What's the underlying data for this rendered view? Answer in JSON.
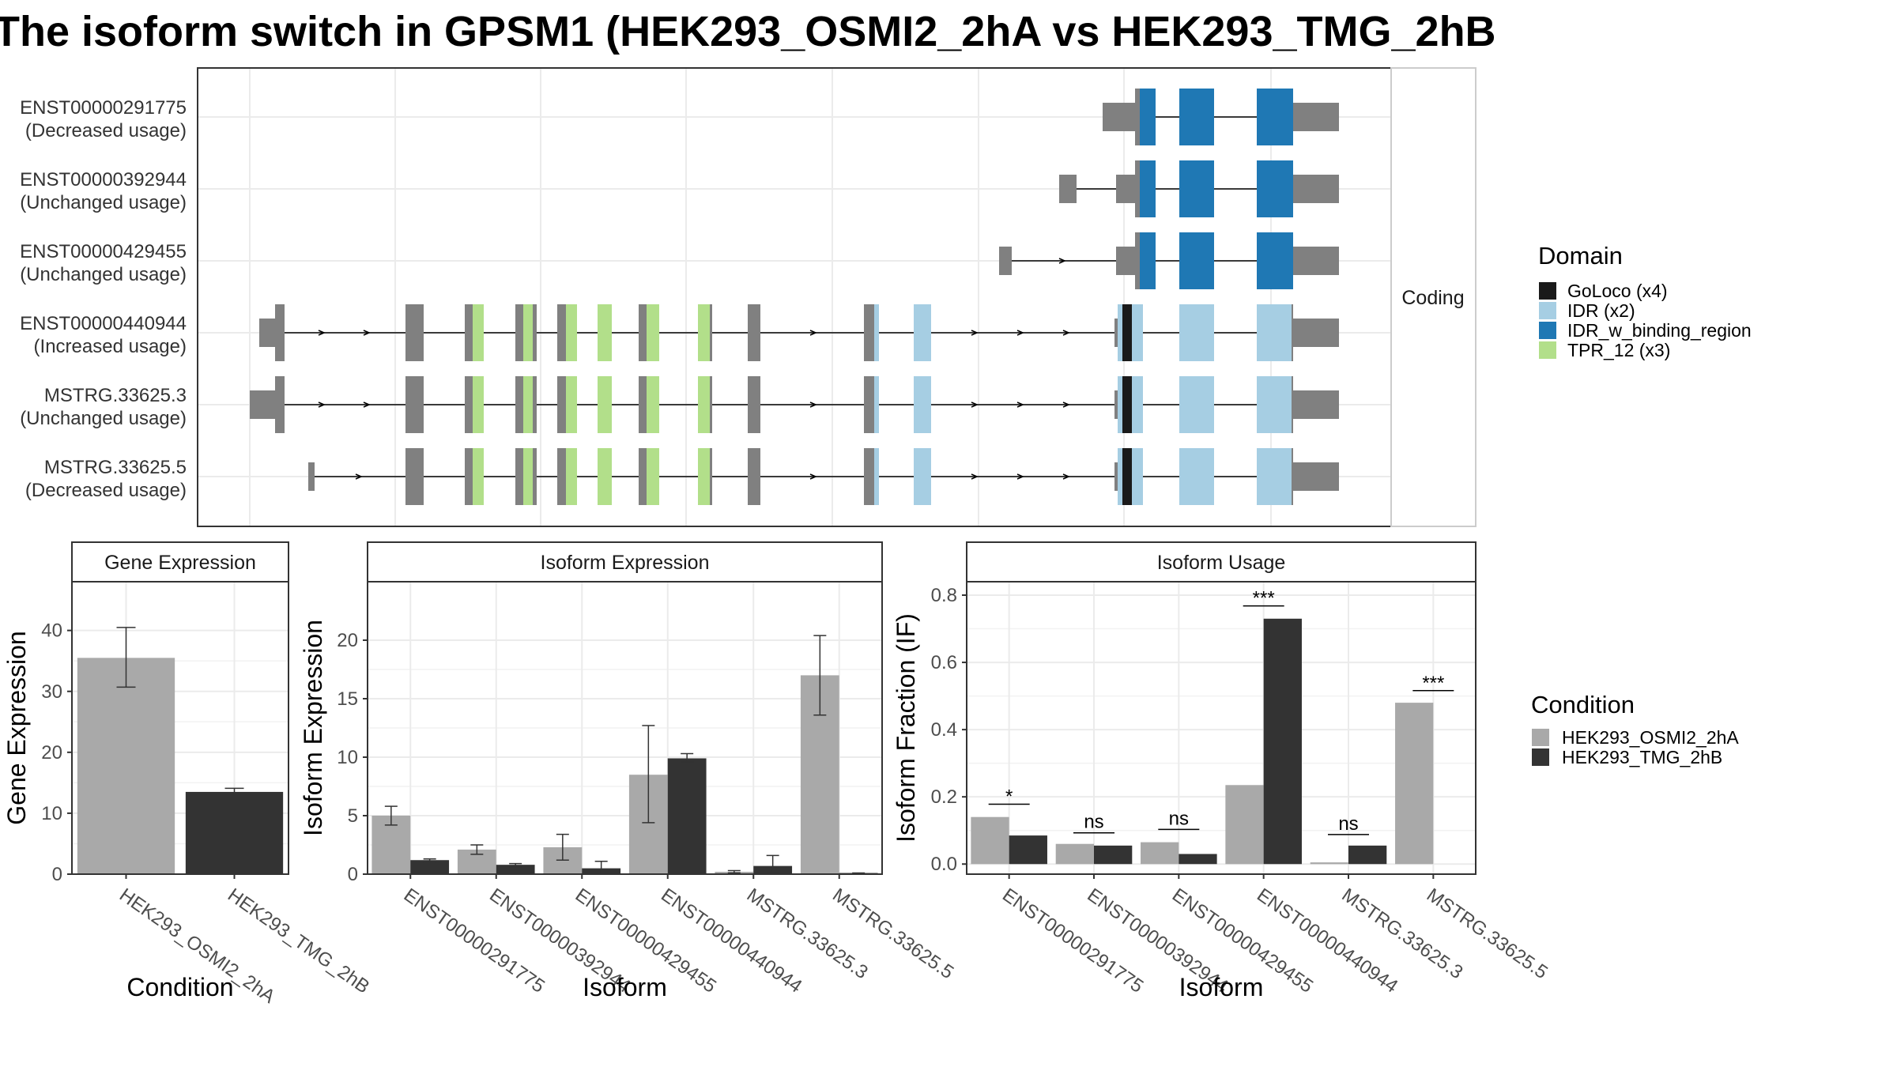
{
  "title": "The isoform switch in GPSM1 (HEK293_OSMI2_2hA vs HEK293_TMG_2hB",
  "colors": {
    "cond_a": "#a9a9a9",
    "cond_b": "#333333",
    "exon": "#808080",
    "goloco": "#1a1a1a",
    "idr": "#a6cee3",
    "idr_binding": "#1f78b4",
    "tpr": "#b2df8a"
  },
  "chart_data": [
    {
      "type": "gene-structure",
      "facet_label": "Coding",
      "transcripts": [
        {
          "id": "ENST00000291775",
          "usage": "(Decreased usage)"
        },
        {
          "id": "ENST00000392944",
          "usage": "(Unchanged usage)"
        },
        {
          "id": "ENST00000429455",
          "usage": "(Unchanged usage)"
        },
        {
          "id": "ENST00000440944",
          "usage": "(Increased usage)"
        },
        {
          "id": "MSTRG.33625.3",
          "usage": "(Unchanged usage)"
        },
        {
          "id": "MSTRG.33625.5",
          "usage": "(Decreased usage)"
        }
      ],
      "legend": {
        "title": "Domain",
        "items": [
          {
            "label": "GoLoco (x4)",
            "color": "#1a1a1a"
          },
          {
            "label": "IDR (x2)",
            "color": "#a6cee3"
          },
          {
            "label": "IDR_w_binding_region",
            "color": "#1f78b4"
          },
          {
            "label": "TPR_12 (x3)",
            "color": "#b2df8a"
          }
        ]
      }
    },
    {
      "type": "bar",
      "strip": "Gene Expression",
      "xlabel": "Condition",
      "ylabel": "Gene Expression",
      "ylim": [
        0,
        48
      ],
      "yticks": [
        0,
        10,
        20,
        30,
        40
      ],
      "categories": [
        "HEK293_OSMI2_2hA",
        "HEK293_TMG_2hB"
      ],
      "values": [
        35.5,
        13.5
      ],
      "errors": [
        [
          30.7,
          40.5
        ],
        [
          13.0,
          14.1
        ]
      ]
    },
    {
      "type": "bar",
      "strip": "Isoform Expression",
      "xlabel": "Isoform",
      "ylabel": "Isoform Expression",
      "ylim": [
        0,
        25
      ],
      "yticks": [
        0,
        5,
        10,
        15,
        20
      ],
      "categories": [
        "ENST00000291775",
        "ENST00000392944",
        "ENST00000429455",
        "ENST00000440944",
        "MSTRG.33625.3",
        "MSTRG.33625.5"
      ],
      "series": [
        {
          "name": "HEK293_OSMI2_2hA",
          "values": [
            5.0,
            2.1,
            2.3,
            8.5,
            0.2,
            17.0
          ],
          "errors": [
            [
              4.2,
              5.8
            ],
            [
              1.7,
              2.5
            ],
            [
              1.2,
              3.4
            ],
            [
              4.4,
              12.7
            ],
            [
              0.1,
              0.3
            ],
            [
              13.6,
              20.4
            ]
          ]
        },
        {
          "name": "HEK293_TMG_2hB",
          "values": [
            1.2,
            0.8,
            0.5,
            9.9,
            0.7,
            0.1
          ],
          "errors": [
            [
              1.0,
              1.3
            ],
            [
              0.6,
              0.9
            ],
            [
              0.0,
              1.1
            ],
            [
              9.6,
              10.3
            ],
            [
              0.1,
              1.6
            ],
            [
              0.0,
              0.1
            ]
          ]
        }
      ]
    },
    {
      "type": "bar",
      "strip": "Isoform Usage",
      "xlabel": "Isoform",
      "ylabel": "Isoform Fraction (IF)",
      "ylim": [
        -0.03,
        0.84
      ],
      "yticks": [
        0.0,
        0.2,
        0.4,
        0.6,
        0.8
      ],
      "ytick_labels": [
        "0.0",
        "0.2",
        "0.4",
        "0.6",
        "0.8"
      ],
      "categories": [
        "ENST00000291775",
        "ENST00000392944",
        "ENST00000429455",
        "ENST00000440944",
        "MSTRG.33625.3",
        "MSTRG.33625.5"
      ],
      "series": [
        {
          "name": "HEK293_OSMI2_2hA",
          "values": [
            0.14,
            0.06,
            0.065,
            0.235,
            0.005,
            0.48
          ]
        },
        {
          "name": "HEK293_TMG_2hB",
          "values": [
            0.085,
            0.055,
            0.03,
            0.73,
            0.055,
            0.0
          ]
        }
      ],
      "significance": [
        "*",
        "ns",
        "ns",
        "***",
        "ns",
        "***"
      ],
      "sig_line_y": [
        0.178,
        0.093,
        0.103,
        0.768,
        0.088,
        0.516
      ]
    }
  ],
  "condition_legend": {
    "title": "Condition",
    "items": [
      "HEK293_OSMI2_2hA",
      "HEK293_TMG_2hB"
    ]
  }
}
